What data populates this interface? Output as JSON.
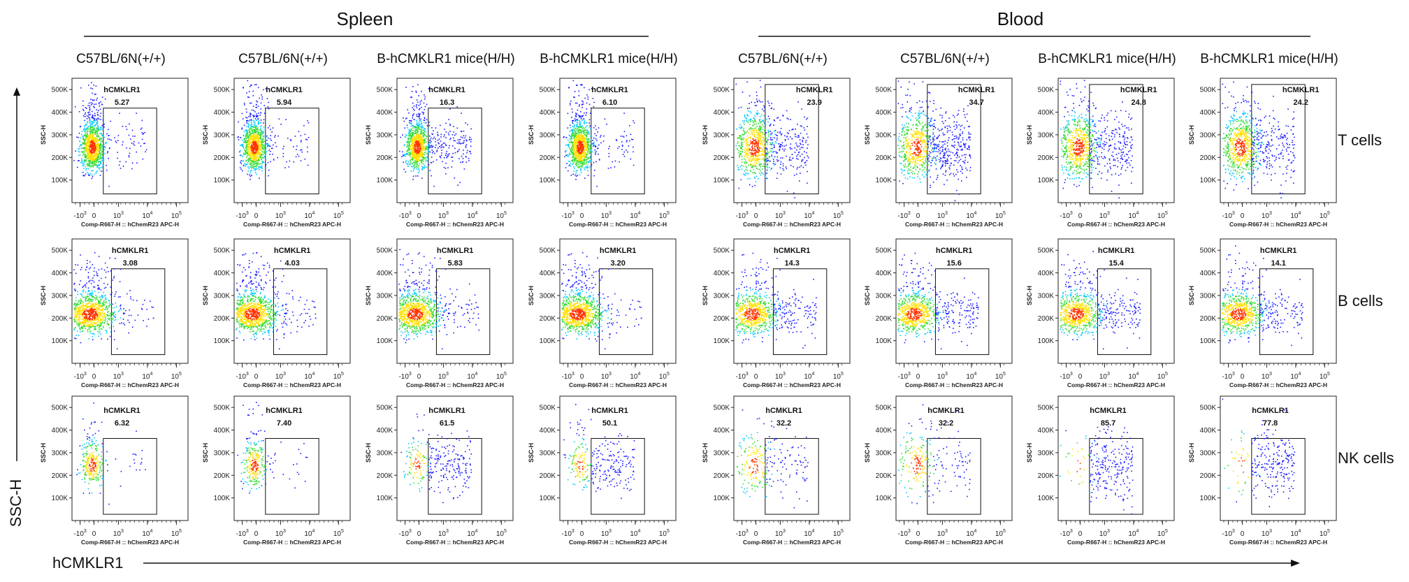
{
  "figure": {
    "y_axis_label": "SSC-H",
    "x_axis_label": "hCMKLR1"
  },
  "groups": [
    {
      "label": "Spleen"
    },
    {
      "label": "Blood"
    }
  ],
  "columns": [
    "C57BL/6N(+/+)",
    "C57BL/6N(+/+)",
    "B-hCMKLR1 mice(H/H)",
    "B-hCMKLR1 mice(H/H)",
    "C57BL/6N(+/+)",
    "C57BL/6N(+/+)",
    "B-hCMKLR1 mice(H/H)",
    "B-hCMKLR1 mice(H/H)"
  ],
  "rows": [
    "T cells",
    "B cells",
    "NK cells"
  ],
  "colors": {
    "density_low": "#1a1aff",
    "density_mid1": "#00c8ff",
    "density_mid2": "#33dd33",
    "density_high1": "#ffe000",
    "density_high2": "#ff3300",
    "axis": "#222222"
  },
  "chart_data": {
    "type": "scatter",
    "subtype": "flow-cytometry-density-dot-plot",
    "panel_xlabel": "Comp-R667-H :: hChemR23 APC-H",
    "panel_ylabel": "SSC-H",
    "gate_label": "hCMKLR1",
    "x_scale": "biexponential",
    "x_ticks": [
      "-10^3",
      "0",
      "10^3",
      "10^4",
      "10^5"
    ],
    "y_ticks": [
      "100K",
      "200K",
      "300K",
      "400K",
      "500K"
    ],
    "ylim": [
      0,
      550000
    ],
    "gate_percent": [
      [
        "5.27",
        "5.94",
        "16.3",
        "6.10",
        "23.9",
        "34.7",
        "24.8",
        "24.2"
      ],
      [
        "3.08",
        "4.03",
        "5.83",
        "3.20",
        "14.3",
        "15.6",
        "15.4",
        "14.1"
      ],
      [
        "6.32",
        "7.40",
        "61.5",
        "50.1",
        "32.2",
        "32.2",
        "85.7",
        "77.8"
      ]
    ]
  }
}
